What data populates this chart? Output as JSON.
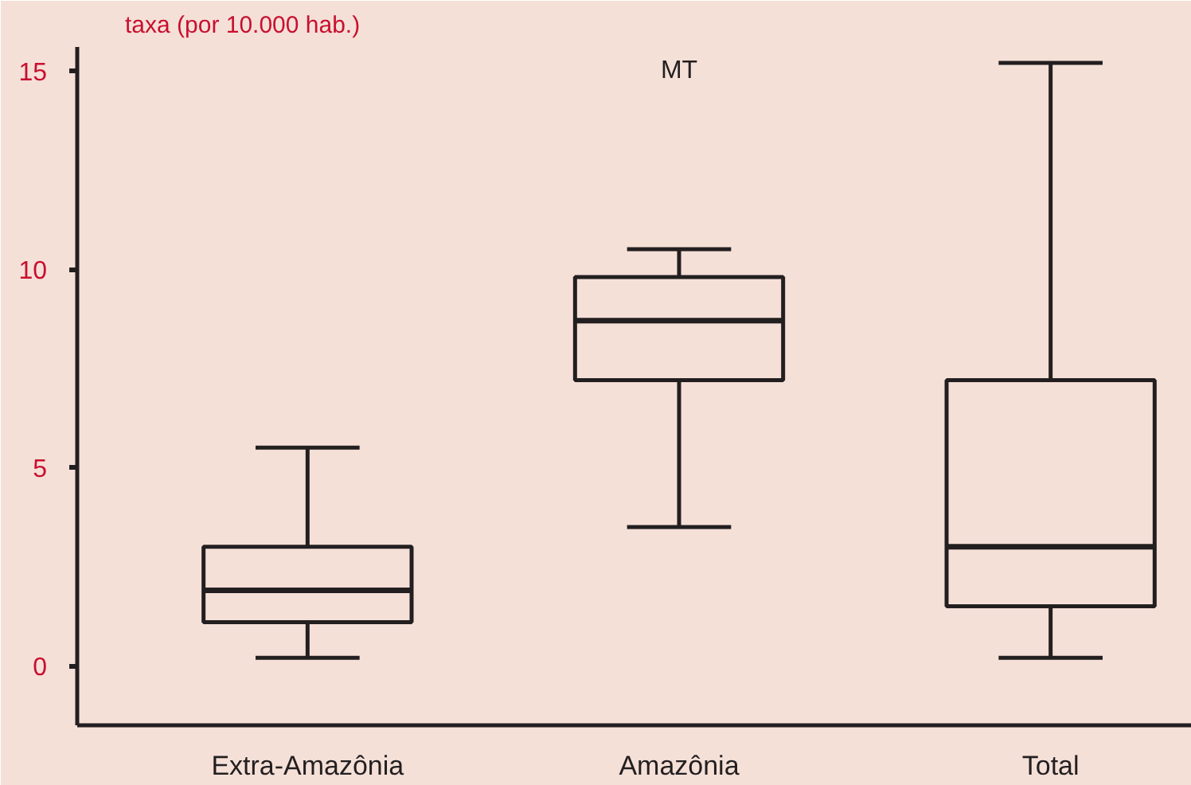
{
  "chart_data": {
    "type": "box",
    "title": "MT",
    "ylabel": "taxa (por 10.000 hab.)",
    "categories": [
      "Extra-Amazônia",
      "Amazônia",
      "Total"
    ],
    "boxes": [
      {
        "low": 0.2,
        "q1": 1.1,
        "median": 1.9,
        "q3": 3.0,
        "high": 5.5
      },
      {
        "low": 3.5,
        "q1": 7.2,
        "median": 8.7,
        "q3": 9.8,
        "high": 10.5
      },
      {
        "low": 0.2,
        "q1": 1.5,
        "median": 3.0,
        "q3": 7.2,
        "high": 15.2
      }
    ],
    "color": "#f5e0d8",
    "ylim": [
      -1.5,
      15.6
    ],
    "yticks": [
      0,
      5,
      10,
      15
    ],
    "grid": false
  }
}
